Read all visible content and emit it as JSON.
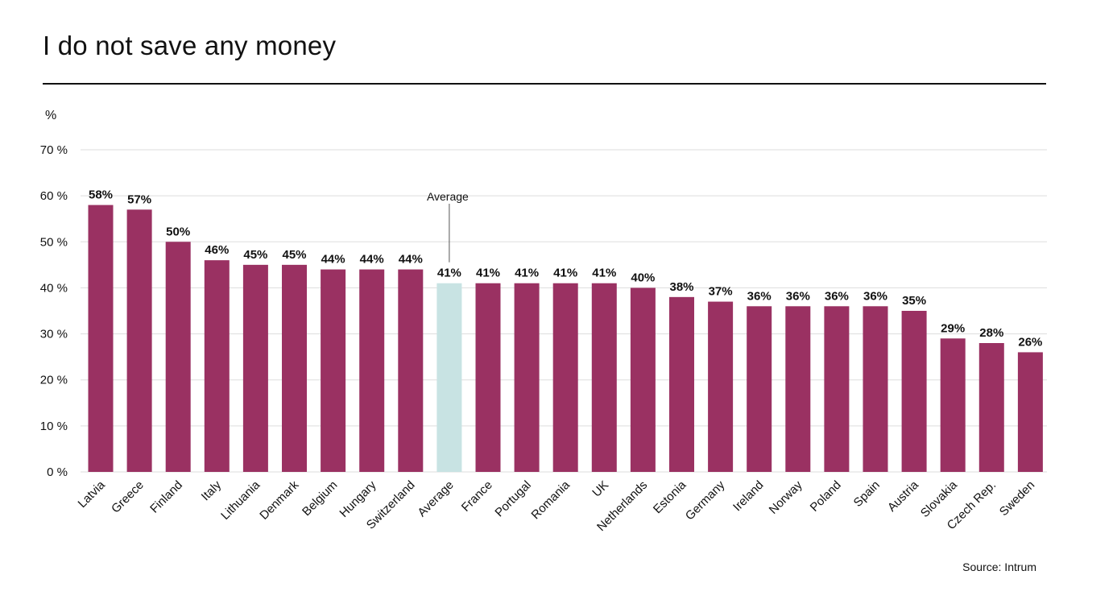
{
  "title": "I do not save any money",
  "source": "Source: Intrum",
  "chart_data": {
    "type": "bar",
    "title": "I do not save any money",
    "ylabel": "%",
    "ylim": [
      0,
      70
    ],
    "yticks": [
      0,
      10,
      20,
      30,
      40,
      50,
      60,
      70
    ],
    "ytick_suffix": " %",
    "grid": true,
    "categories": [
      "Latvia",
      "Greece",
      "Finland",
      "Italy",
      "Lithuania",
      "Denmark",
      "Belgium",
      "Hungary",
      "Switzerland",
      "Average",
      "France",
      "Portugal",
      "Romania",
      "UK",
      "Netherlands",
      "Estonia",
      "Germany",
      "Ireland",
      "Norway",
      "Poland",
      "Spain",
      "Austria",
      "Slovakia",
      "Czech Rep.",
      "Sweden"
    ],
    "values": [
      58,
      57,
      50,
      46,
      45,
      45,
      44,
      44,
      44,
      41,
      41,
      41,
      41,
      41,
      40,
      38,
      37,
      36,
      36,
      36,
      36,
      35,
      29,
      28,
      26
    ],
    "data_labels": [
      "58%",
      "57%",
      "50%",
      "46%",
      "45%",
      "45%",
      "44%",
      "44%",
      "44%",
      "41%",
      "41%",
      "41%",
      "41%",
      "41%",
      "40%",
      "38%",
      "37%",
      "36%",
      "36%",
      "36%",
      "36%",
      "35%",
      "29%",
      "28%",
      "26%"
    ],
    "highlight_category": "Average",
    "annotation": "Average",
    "colors": {
      "bar": "#9a3162",
      "highlight": "#c8e3e3",
      "grid": "#dddddd",
      "text": "#111111"
    }
  }
}
